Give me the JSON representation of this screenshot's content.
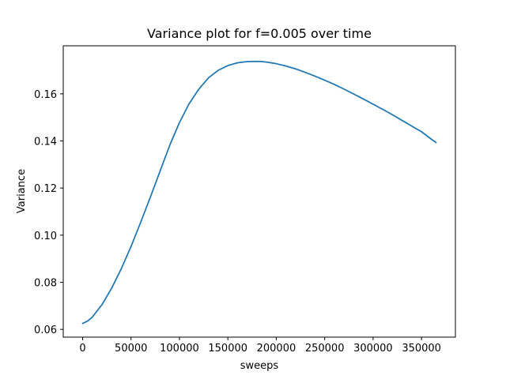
{
  "chart_data": {
    "type": "line",
    "title": "Variance plot for f=0.005 over time",
    "xlabel": "sweeps",
    "ylabel": "Variance",
    "xlim": [
      -20000,
      385000
    ],
    "ylim": [
      0.0567,
      0.1804
    ],
    "xticks": [
      0,
      50000,
      100000,
      150000,
      200000,
      250000,
      300000,
      350000
    ],
    "yticks": [
      0.06,
      0.08,
      0.1,
      0.12,
      0.14,
      0.16
    ],
    "xtick_labels": [
      "0",
      "50000",
      "100000",
      "150000",
      "200000",
      "250000",
      "300000",
      "350000"
    ],
    "ytick_labels": [
      "0.06",
      "0.08",
      "0.10",
      "0.12",
      "0.14",
      "0.16"
    ],
    "grid": false,
    "series": [
      {
        "color": "#1f77b4",
        "x": [
          0,
          5000,
          10000,
          20000,
          30000,
          40000,
          50000,
          60000,
          70000,
          80000,
          90000,
          100000,
          110000,
          120000,
          130000,
          140000,
          150000,
          160000,
          170000,
          180000,
          185000,
          190000,
          200000,
          210000,
          220000,
          230000,
          240000,
          250000,
          260000,
          270000,
          280000,
          290000,
          300000,
          310000,
          320000,
          330000,
          340000,
          350000,
          360000,
          365000
        ],
        "y": [
          0.0625,
          0.0635,
          0.0652,
          0.0705,
          0.0775,
          0.0858,
          0.0952,
          0.1055,
          0.1162,
          0.1272,
          0.1382,
          0.1478,
          0.1558,
          0.162,
          0.1668,
          0.17,
          0.172,
          0.1732,
          0.1737,
          0.1738,
          0.1737,
          0.1735,
          0.1728,
          0.1718,
          0.1706,
          0.1691,
          0.1675,
          0.1658,
          0.164,
          0.162,
          0.1599,
          0.1578,
          0.1556,
          0.1534,
          0.1511,
          0.1487,
          0.1463,
          0.1439,
          0.1408,
          0.1393
        ]
      }
    ]
  }
}
